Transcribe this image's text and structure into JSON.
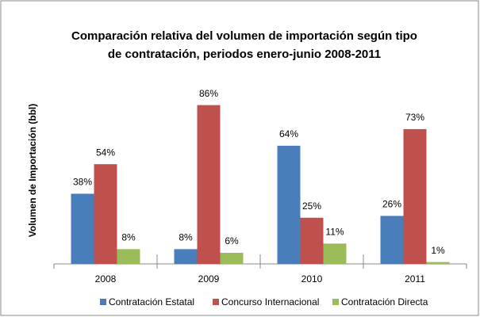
{
  "chart_data": {
    "type": "bar",
    "title": [
      "Comparación relativa del volumen de importación según tipo",
      "de contratación, periodos enero-junio 2008-2011"
    ],
    "y_label": "Volumen de Importación (bbl)",
    "categories": [
      "2008",
      "2009",
      "2010",
      "2011"
    ],
    "ylim": [
      0,
      100
    ],
    "series": [
      {
        "name": "Contratación Estatal",
        "color": "#4a7ebb",
        "values": [
          38,
          8,
          64,
          26
        ],
        "value_labels": [
          "38%",
          "8%",
          "64%",
          "26%"
        ]
      },
      {
        "name": "Concurso Internacional",
        "color": "#c0504d",
        "values": [
          54,
          86,
          25,
          73
        ],
        "value_labels": [
          "54%",
          "86%",
          "25%",
          "73%"
        ]
      },
      {
        "name": "Contratación Directa",
        "color": "#9bbb59",
        "values": [
          8,
          6,
          11,
          1
        ],
        "value_labels": [
          "8%",
          "6%",
          "11%",
          "1%"
        ]
      }
    ]
  }
}
